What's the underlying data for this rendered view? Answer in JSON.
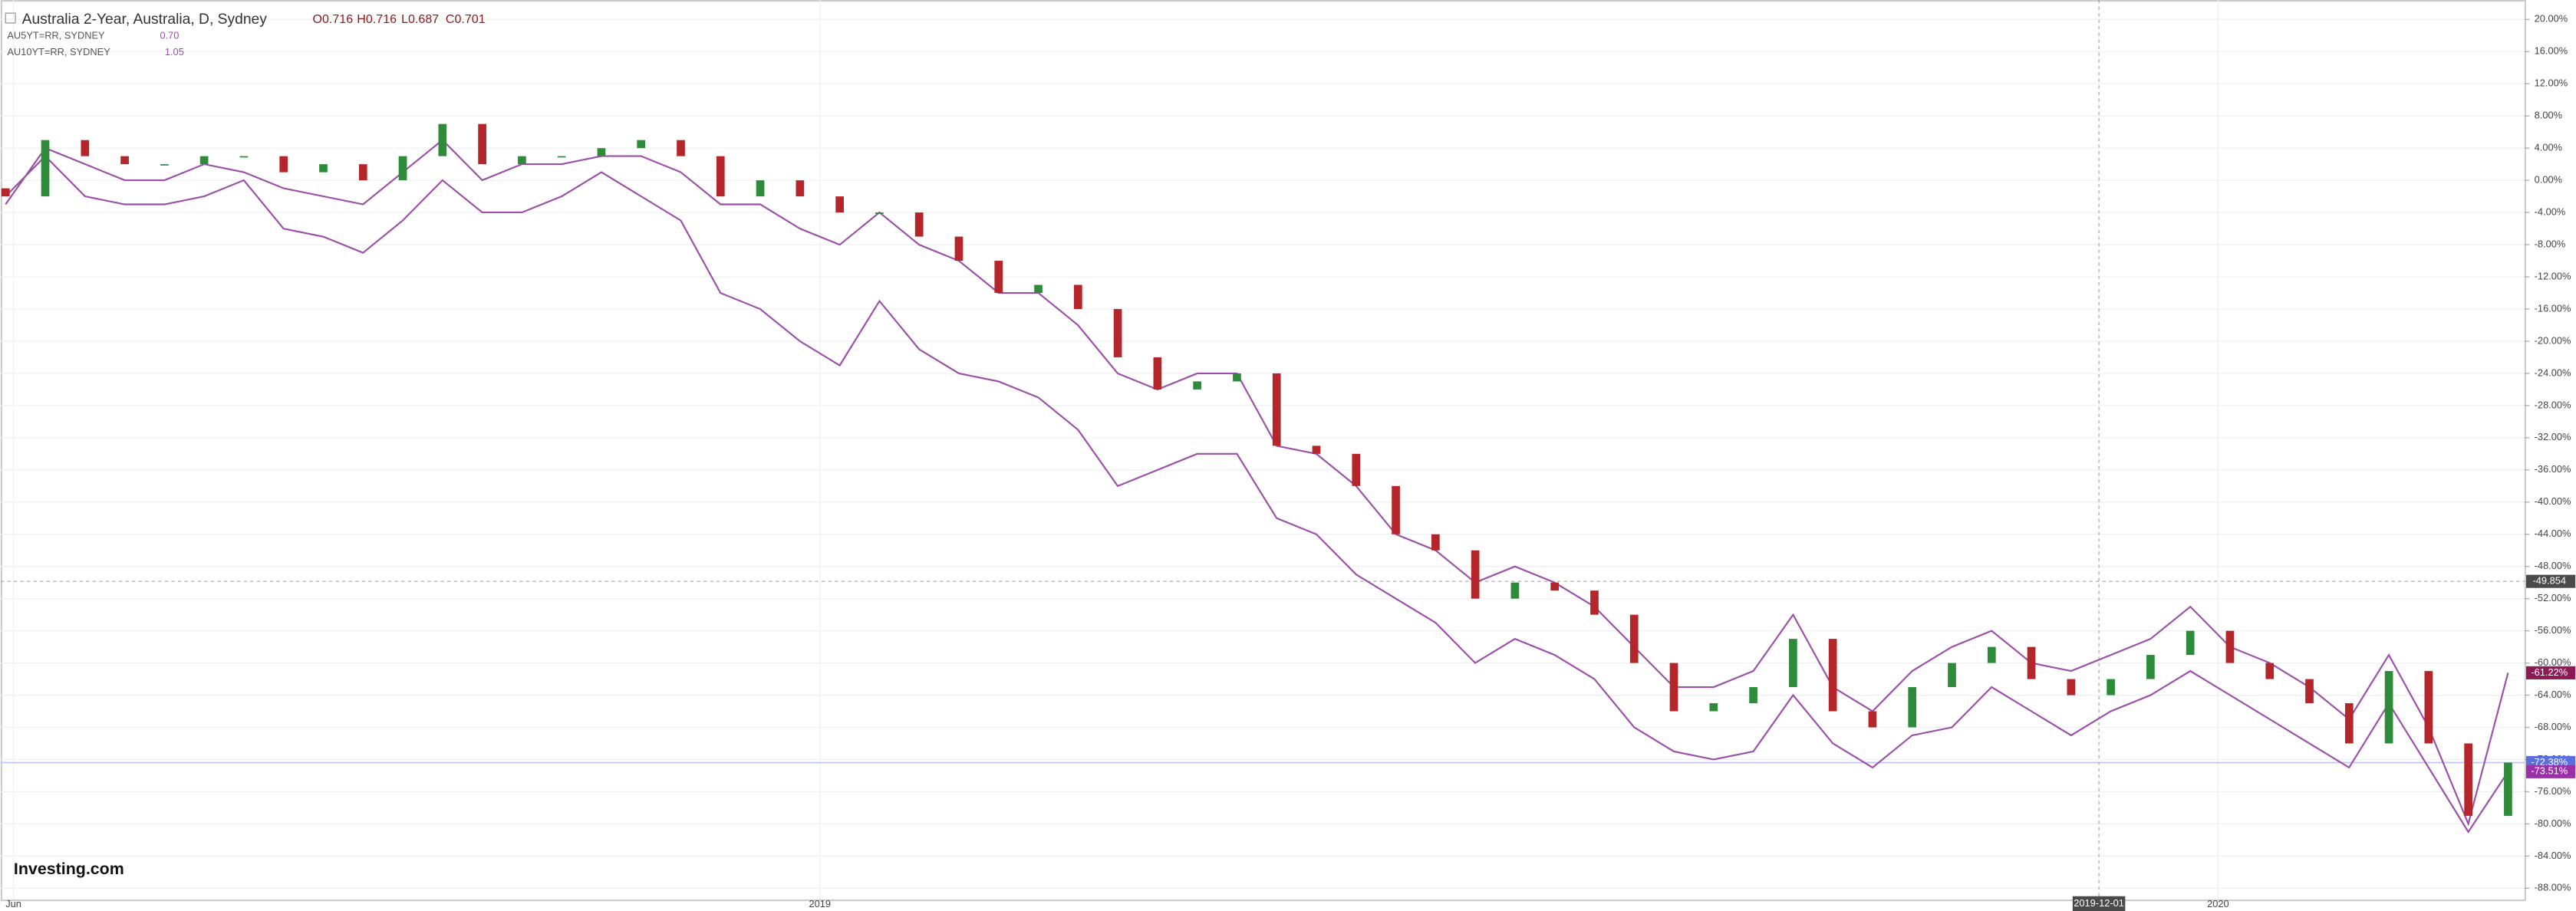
{
  "chart_data": {
    "type": "candlestick",
    "title": "Australia 2-Year, Australia, D, Sydney",
    "ohlc": [
      "O0.716",
      "H0.716",
      "L0.687",
      "C0.701"
    ],
    "up_color": "#2e8b3a",
    "down_color": "#b5262b",
    "open": [
      -1,
      -2,
      5,
      3,
      2,
      2,
      3,
      3,
      1,
      2,
      0,
      3,
      7,
      2,
      3,
      3,
      4,
      5,
      3,
      -2,
      0,
      -2,
      -4,
      -4,
      -7,
      -10,
      -14,
      -13,
      -16,
      -22,
      -26,
      -25,
      -24,
      -33,
      -34,
      -38,
      -44,
      -46,
      -52,
      -50,
      -51,
      -54,
      -60,
      -66,
      -65,
      -63,
      -57,
      -66,
      -68,
      -63,
      -60,
      -58,
      -62,
      -64,
      -62,
      -59,
      -56,
      -60,
      -62,
      -65,
      -70,
      -61,
      -70,
      -79
    ],
    "close": [
      -2,
      5,
      3,
      2,
      2,
      3,
      3,
      1,
      2,
      0,
      3,
      7,
      2,
      3,
      3,
      4,
      5,
      3,
      -2,
      0,
      -2,
      -4,
      -4,
      -7,
      -10,
      -14,
      -13,
      -16,
      -22,
      -26,
      -25,
      -24,
      -33,
      -34,
      -38,
      -44,
      -46,
      -52,
      -50,
      -51,
      -54,
      -60,
      -66,
      -65,
      -63,
      -57,
      -66,
      -68,
      -63,
      -60,
      -58,
      -62,
      -64,
      -62,
      -59,
      -56,
      -60,
      -62,
      -65,
      -70,
      -61,
      -70,
      -79,
      -72.38
    ],
    "series": [
      {
        "name": "AU5YT=RR, SYDNEY",
        "legend_value": "0.70",
        "color": "#9b4fa8",
        "values": [
          -3,
          4,
          2,
          0,
          0,
          2,
          1,
          -1,
          -2,
          -3,
          1,
          5,
          0,
          2,
          2,
          3,
          3,
          1,
          -3,
          -3,
          -6,
          -8,
          -4,
          -8,
          -10,
          -14,
          -14,
          -18,
          -24,
          -26,
          -24,
          -24,
          -33,
          -34,
          -38,
          -44,
          -46,
          -50,
          -48,
          -50,
          -53,
          -58,
          -63,
          -63,
          -61,
          -54,
          -63,
          -66,
          -61,
          -58,
          -56,
          -60,
          -61,
          -59,
          -57,
          -53,
          -58,
          -60,
          -63,
          -67,
          -59,
          -68,
          -80,
          -61.22
        ]
      },
      {
        "name": "AU10YT=RR, SYDNEY",
        "legend_value": "1.05",
        "color": "#9b4fa8",
        "values": [
          -2,
          3,
          -2,
          -3,
          -3,
          -2,
          0,
          -6,
          -7,
          -9,
          -5,
          0,
          -4,
          -4,
          -2,
          1,
          -2,
          -5,
          -14,
          -16,
          -20,
          -23,
          -15,
          -21,
          -24,
          -25,
          -27,
          -31,
          -38,
          -36,
          -34,
          -34,
          -42,
          -44,
          -49,
          -52,
          -55,
          -60,
          -57,
          -59,
          -62,
          -68,
          -71,
          -72,
          -71,
          -64,
          -70,
          -73,
          -69,
          -68,
          -63,
          -66,
          -69,
          -66,
          -64,
          -61,
          -64,
          -67,
          -70,
          -73,
          -65,
          -73,
          -81,
          -73.51
        ]
      }
    ],
    "price_labels": [
      {
        "value": -61.22,
        "label": "-61.22%",
        "color": "#8b1a55"
      },
      {
        "value": -72.38,
        "label": "-72.38%",
        "color": "#5b6ee0"
      },
      {
        "value": -73.51,
        "label": "-73.51%",
        "color": "#9b2fa8"
      }
    ],
    "crosshair": {
      "y": {
        "value": -49.854,
        "label": "-49.854"
      },
      "x": {
        "value": 52.7,
        "label": "2019-12-01"
      }
    },
    "xlim": [
      0,
      63
    ],
    "xticks": [
      {
        "value": 0.2,
        "label": "Jun"
      },
      {
        "value": 20.5,
        "label": "2019"
      },
      {
        "value": 55.7,
        "label": "2020"
      }
    ],
    "ylim": [
      -89.4,
      21.8
    ],
    "yticks": [
      {
        "value": 20,
        "label": "20.00%"
      },
      {
        "value": 16,
        "label": "16.00%"
      },
      {
        "value": 12,
        "label": "12.00%"
      },
      {
        "value": 8,
        "label": "8.00%"
      },
      {
        "value": 4,
        "label": "4.00%"
      },
      {
        "value": 0,
        "label": "0.00%"
      },
      {
        "value": -4,
        "label": "-4.00%"
      },
      {
        "value": -8,
        "label": "-8.00%"
      },
      {
        "value": -12,
        "label": "-12.00%"
      },
      {
        "value": -16,
        "label": "-16.00%"
      },
      {
        "value": -20,
        "label": "-20.00%"
      },
      {
        "value": -24,
        "label": "-24.00%"
      },
      {
        "value": -28,
        "label": "-28.00%"
      },
      {
        "value": -32,
        "label": "-32.00%"
      },
      {
        "value": -36,
        "label": "-36.00%"
      },
      {
        "value": -40,
        "label": "-40.00%"
      },
      {
        "value": -44,
        "label": "-44.00%"
      },
      {
        "value": -48,
        "label": "-48.00%"
      },
      {
        "value": -52,
        "label": "-52.00%"
      },
      {
        "value": -56,
        "label": "-56.00%"
      },
      {
        "value": -60,
        "label": "-60.00%"
      },
      {
        "value": -64,
        "label": "-64.00%"
      },
      {
        "value": -68,
        "label": "-68.00%"
      },
      {
        "value": -72,
        "label": "-72.00%"
      },
      {
        "value": -76,
        "label": "-76.00%"
      },
      {
        "value": -80,
        "label": "-80.00%"
      },
      {
        "value": -84,
        "label": "-84.00%"
      },
      {
        "value": -88,
        "label": "-88.00%"
      }
    ],
    "grid": true,
    "logo": "Investing.com"
  }
}
